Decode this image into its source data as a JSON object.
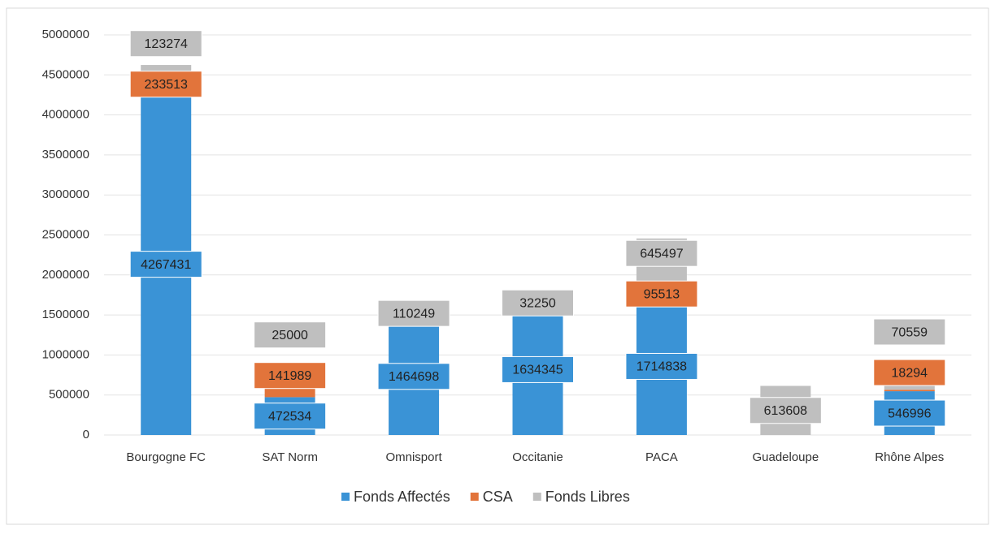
{
  "chart_data": {
    "type": "bar",
    "stacked": true,
    "categories": [
      "Bourgogne FC",
      "SAT Norm",
      "Omnisport",
      "Occitanie",
      "PACA",
      "Guadeloupe",
      "Rhône Alpes"
    ],
    "series": [
      {
        "name": "Fonds Affectés",
        "color": "#3a93d6",
        "values": [
          4267431,
          472534,
          1464698,
          1634345,
          1714838,
          null,
          546996
        ]
      },
      {
        "name": "CSA",
        "color": "#e2743b",
        "values": [
          233513,
          141989,
          null,
          null,
          95513,
          null,
          18294
        ]
      },
      {
        "name": "Fonds Libres",
        "color": "#bfbfbf",
        "values": [
          123274,
          25000,
          110249,
          32250,
          645497,
          613608,
          70559
        ]
      }
    ],
    "ylim": [
      0,
      5000000
    ],
    "yticks": [
      0,
      500000,
      1000000,
      1500000,
      2000000,
      2500000,
      3000000,
      3500000,
      4000000,
      4500000,
      5000000
    ],
    "grid": true,
    "legend": "bottom"
  }
}
